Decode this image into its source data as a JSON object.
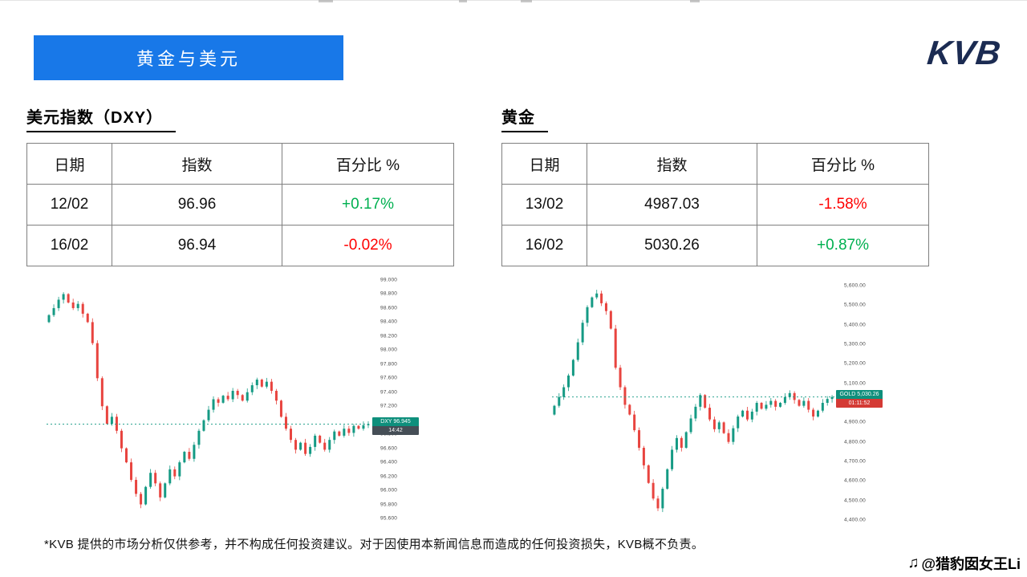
{
  "banner": {
    "title": "黄金与美元",
    "bg": "#1878e8"
  },
  "logo": {
    "text": "KVB",
    "color": "#1b2b52"
  },
  "dxy": {
    "heading": "美元指数（DXY）",
    "table": {
      "headers": [
        "日期",
        "指数",
        "百分比 %"
      ],
      "rows": [
        {
          "date": "12/02",
          "value": "96.96",
          "pct": "+0.17%",
          "pct_color": "#00b050"
        },
        {
          "date": "16/02",
          "value": "96.94",
          "pct": "-0.02%",
          "pct_color": "#ff0000"
        }
      ]
    }
  },
  "gold": {
    "heading": "黄金",
    "table": {
      "headers": [
        "日期",
        "指数",
        "百分比 %"
      ],
      "rows": [
        {
          "date": "13/02",
          "value": "4987.03",
          "pct": "-1.58%",
          "pct_color": "#ff0000"
        },
        {
          "date": "16/02",
          "value": "5030.26",
          "pct": "+0.87%",
          "pct_color": "#00b050"
        }
      ]
    }
  },
  "chart_data": [
    {
      "dom_id": "chart-dxy",
      "type": "candlestick",
      "title": "美元指数（DXY）",
      "symbol": "DXY",
      "last_price": 96.945,
      "ylim": [
        95.6,
        99.0
      ],
      "ticks": [
        "99.000",
        "98.800",
        "98.600",
        "98.400",
        "98.200",
        "98.000",
        "97.800",
        "97.600",
        "97.400",
        "97.200",
        "97.000",
        "96.800",
        "96.600",
        "96.400",
        "96.200",
        "96.000",
        "95.800",
        "95.600"
      ],
      "up_color": "#159a84",
      "down_color": "#e8443f",
      "badge": {
        "label": "DXY",
        "price": "96.945",
        "time": "14:42",
        "price_bg": "#0e8f7c",
        "time_bg": "#454e56"
      },
      "closes": [
        98.5,
        98.6,
        98.72,
        98.8,
        98.68,
        98.6,
        98.66,
        98.52,
        98.4,
        98.1,
        97.6,
        97.2,
        96.95,
        97.05,
        96.85,
        96.6,
        96.4,
        96.15,
        95.95,
        95.8,
        96.05,
        96.25,
        96.1,
        95.9,
        96.1,
        96.3,
        96.2,
        96.4,
        96.55,
        96.45,
        96.65,
        96.85,
        97.0,
        97.15,
        97.3,
        97.25,
        97.35,
        97.3,
        97.42,
        97.36,
        97.28,
        97.4,
        97.5,
        97.58,
        97.48,
        97.55,
        97.42,
        97.28,
        97.05,
        96.88,
        96.72,
        96.58,
        96.68,
        96.52,
        96.62,
        96.78,
        96.68,
        96.58,
        96.72,
        96.84,
        96.78,
        96.88,
        96.82,
        96.92,
        96.88,
        96.93,
        96.945
      ]
    },
    {
      "dom_id": "chart-gold",
      "type": "candlestick",
      "title": "黄金",
      "symbol": "GOLD",
      "last_price": 5030.26,
      "ylim": [
        4400,
        5600
      ],
      "ticks": [
        "5,600.00",
        "5,500.00",
        "5,400.00",
        "5,300.00",
        "5,200.00",
        "5,100.00",
        "5,000.00",
        "4,900.00",
        "4,800.00",
        "4,700.00",
        "4,600.00",
        "4,500.00",
        "4,400.00"
      ],
      "up_color": "#159a84",
      "down_color": "#e8443f",
      "badge": {
        "label": "GOLD",
        "price": "5,030.26",
        "time": "01:11:52",
        "price_bg": "#0e8f7c",
        "time_bg": "#d43a35"
      },
      "closes": [
        4985,
        5030,
        5080,
        5140,
        5220,
        5310,
        5410,
        5490,
        5540,
        5560,
        5510,
        5470,
        5380,
        5180,
        5080,
        4990,
        4940,
        4860,
        4770,
        4680,
        4590,
        4510,
        4460,
        4560,
        4660,
        4760,
        4820,
        4770,
        4850,
        4920,
        4980,
        5040,
        4975,
        4915,
        4865,
        4900,
        4845,
        4800,
        4870,
        4930,
        4960,
        4915,
        4955,
        5000,
        4970,
        4990,
        5010,
        4980,
        5000,
        5030,
        5050,
        5015,
        4985,
        5010,
        4965,
        4930,
        4960,
        5000,
        5020,
        5030.26
      ]
    }
  ],
  "footer": {
    "disclaimer": "*KVB 提供的市场分析仅供参考，并不构成任何投资建议。对于因使用本新闻信息而造成的任何投资损失，KVB概不负责。",
    "watermark_icon": "♫",
    "watermark": "@猎豹囡女王Li"
  }
}
